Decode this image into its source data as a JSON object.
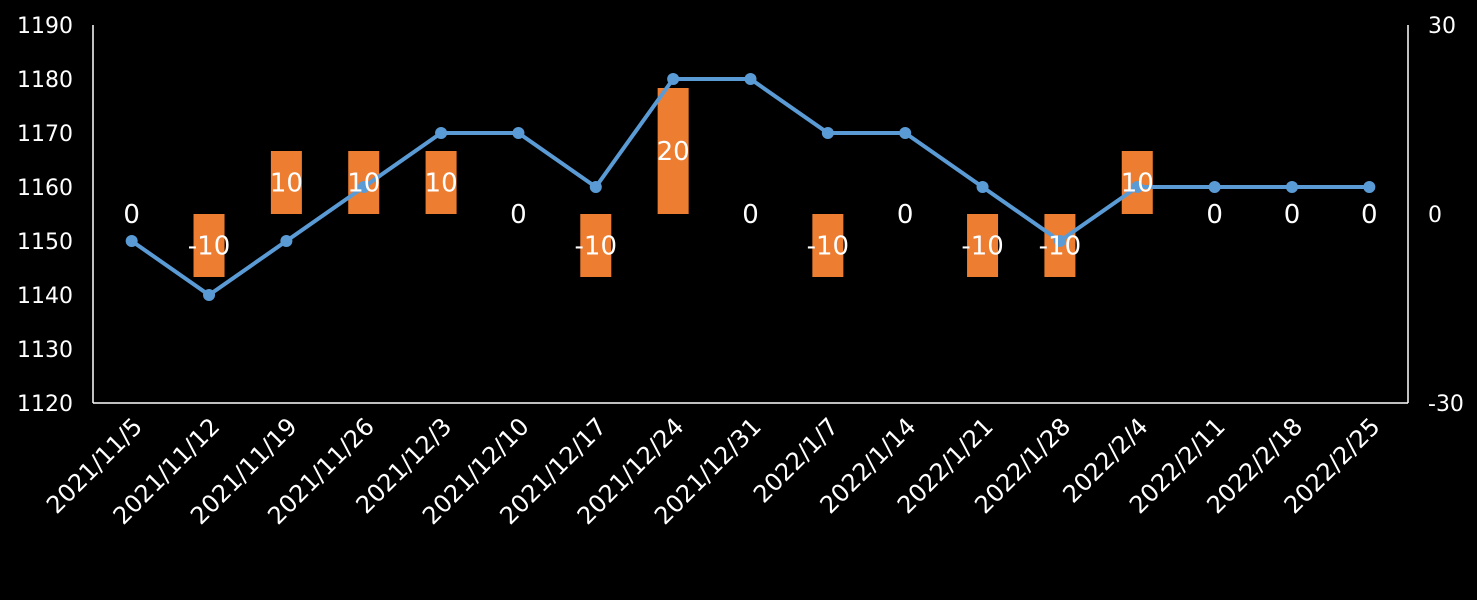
{
  "chart_data": {
    "type": "bar+line",
    "categories": [
      "2021/11/5",
      "2021/11/12",
      "2021/11/19",
      "2021/11/26",
      "2021/12/3",
      "2021/12/10",
      "2021/12/17",
      "2021/12/24",
      "2021/12/31",
      "2022/1/7",
      "2022/1/14",
      "2022/1/21",
      "2022/1/28",
      "2022/2/4",
      "2022/2/11",
      "2022/2/18",
      "2022/2/25"
    ],
    "series": [
      {
        "type": "bar",
        "axis": "right",
        "color": "#ED7D31",
        "values": [
          0,
          -10,
          10,
          10,
          10,
          0,
          -10,
          20,
          0,
          -10,
          0,
          -10,
          -10,
          10,
          0,
          0,
          0
        ]
      },
      {
        "type": "line",
        "axis": "left",
        "color": "#5B9BD5",
        "values": [
          1150,
          1140,
          1150,
          1160,
          1170,
          1170,
          1160,
          1180,
          1180,
          1170,
          1170,
          1160,
          1150,
          1160,
          1160,
          1160,
          1160
        ]
      }
    ],
    "y_left": {
      "min": 1120,
      "max": 1190,
      "step": 10,
      "tick_labels": [
        "1120",
        "1130",
        "1140",
        "1150",
        "1160",
        "1170",
        "1180",
        "1190"
      ]
    },
    "y_right": {
      "min": -30,
      "max": 30,
      "step": 30,
      "tick_labels": [
        "-30",
        "0",
        "30"
      ]
    },
    "grid": false,
    "legend": "none",
    "data_labels": [
      "0",
      "-10",
      "10",
      "10",
      "10",
      "0",
      "-10",
      "20",
      "0",
      "-10",
      "0",
      "-10",
      "-10",
      "10",
      "0",
      "0",
      "0"
    ]
  }
}
